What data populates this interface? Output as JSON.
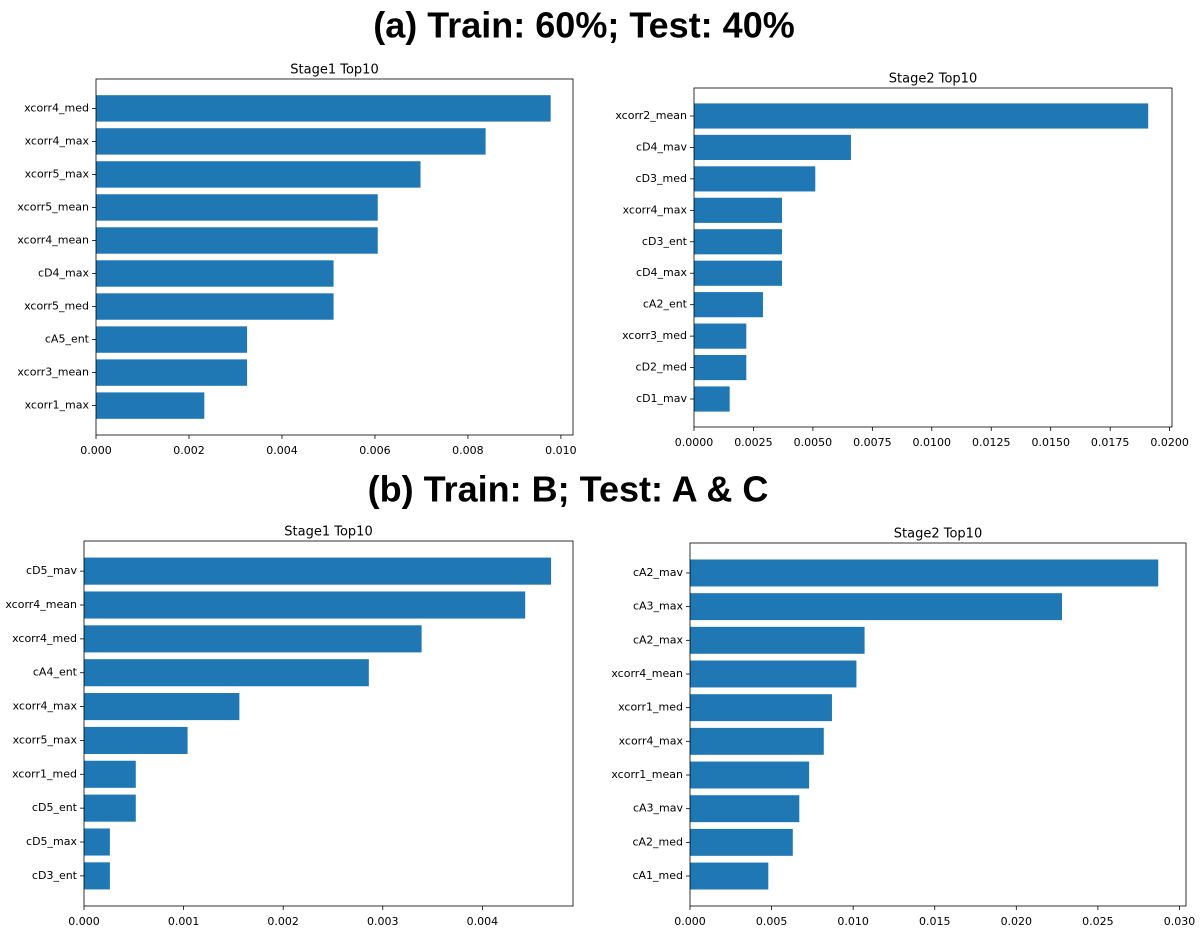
{
  "headings": [
    "(a) Train: 60%; Test: 40%",
    "(b) Train: B; Test: A & C"
  ],
  "chart_data": [
    {
      "type": "barh",
      "title": "Stage1 Top10",
      "color": "#1f77b4",
      "categories": [
        "xcorr4_med",
        "xcorr4_max",
        "xcorr5_max",
        "xcorr5_mean",
        "xcorr4_mean",
        "cD4_max",
        "xcorr5_med",
        "cA5_ent",
        "xcorr3_mean",
        "xcorr1_max"
      ],
      "values": [
        0.00978,
        0.00838,
        0.00698,
        0.00606,
        0.00606,
        0.00511,
        0.00511,
        0.00325,
        0.00325,
        0.00233
      ],
      "xlim": [
        0,
        0.01026
      ],
      "xticks": [
        {
          "value": 0,
          "label": "0.000"
        },
        {
          "value": 0.002,
          "label": "0.002"
        },
        {
          "value": 0.004,
          "label": "0.004"
        },
        {
          "value": 0.006,
          "label": "0.006"
        },
        {
          "value": 0.008,
          "label": "0.008"
        },
        {
          "value": 0.01,
          "label": "0.010"
        }
      ]
    },
    {
      "type": "barh",
      "title": "Stage2 Top10",
      "color": "#1f77b4",
      "categories": [
        "xcorr2_mean",
        "cD4_mav",
        "cD3_med",
        "xcorr4_max",
        "cD3_ent",
        "cD4_max",
        "cA2_ent",
        "xcorr3_med",
        "cD2_med",
        "cD1_mav"
      ],
      "values": [
        0.0191,
        0.0066,
        0.0051,
        0.0037,
        0.0037,
        0.0037,
        0.0029,
        0.0022,
        0.0022,
        0.0015
      ],
      "xlim": [
        0,
        0.0201
      ],
      "xticks": [
        {
          "value": 0,
          "label": "0.0000"
        },
        {
          "value": 0.0025,
          "label": "0.0025"
        },
        {
          "value": 0.005,
          "label": "0.0050"
        },
        {
          "value": 0.0075,
          "label": "0.0075"
        },
        {
          "value": 0.01,
          "label": "0.0100"
        },
        {
          "value": 0.0125,
          "label": "0.0125"
        },
        {
          "value": 0.015,
          "label": "0.0150"
        },
        {
          "value": 0.0175,
          "label": "0.0175"
        },
        {
          "value": 0.02,
          "label": "0.0200"
        }
      ]
    },
    {
      "type": "barh",
      "title": "Stage1 Top10",
      "color": "#1f77b4",
      "categories": [
        "cD5_mav",
        "xcorr4_mean",
        "xcorr4_med",
        "cA4_ent",
        "xcorr4_max",
        "xcorr5_max",
        "xcorr1_med",
        "cD5_ent",
        "cD5_max",
        "cD3_ent"
      ],
      "values": [
        0.00469,
        0.00443,
        0.00339,
        0.00286,
        0.00156,
        0.00104,
        0.00052,
        0.00052,
        0.00026,
        0.00026
      ],
      "xlim": [
        0,
        0.00491
      ],
      "xticks": [
        {
          "value": 0,
          "label": "0.000"
        },
        {
          "value": 0.001,
          "label": "0.001"
        },
        {
          "value": 0.002,
          "label": "0.002"
        },
        {
          "value": 0.003,
          "label": "0.003"
        },
        {
          "value": 0.004,
          "label": "0.004"
        }
      ]
    },
    {
      "type": "barh",
      "title": "Stage2 Top10",
      "color": "#1f77b4",
      "categories": [
        "cA2_mav",
        "cA3_max",
        "cA2_max",
        "xcorr4_mean",
        "xcorr1_med",
        "xcorr4_max",
        "xcorr1_mean",
        "cA3_mav",
        "cA2_med",
        "cA1_med"
      ],
      "values": [
        0.0287,
        0.0228,
        0.0107,
        0.0102,
        0.0087,
        0.0082,
        0.0073,
        0.0067,
        0.0063,
        0.0048
      ],
      "xlim": [
        0,
        0.0304
      ],
      "xticks": [
        {
          "value": 0,
          "label": "0.000"
        },
        {
          "value": 0.005,
          "label": "0.005"
        },
        {
          "value": 0.01,
          "label": "0.010"
        },
        {
          "value": 0.015,
          "label": "0.015"
        },
        {
          "value": 0.02,
          "label": "0.020"
        },
        {
          "value": 0.025,
          "label": "0.025"
        },
        {
          "value": 0.03,
          "label": "0.030"
        }
      ]
    }
  ]
}
